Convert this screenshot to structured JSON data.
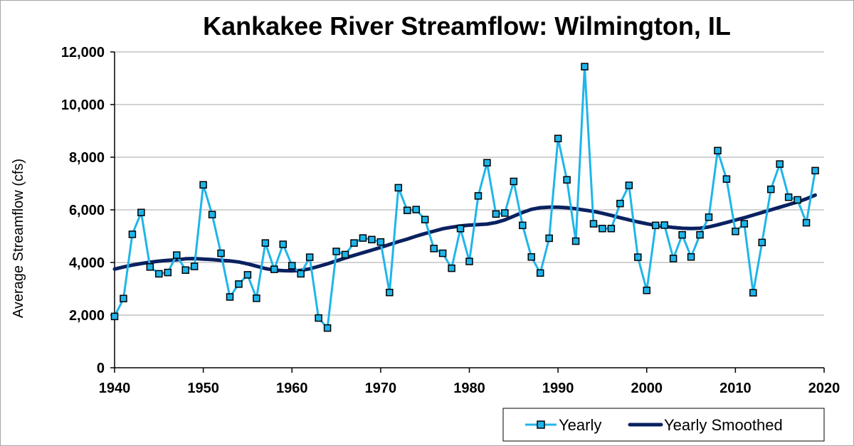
{
  "chart_data": {
    "type": "line",
    "title": "Kankakee River Streamflow: Wilmington, IL",
    "xlabel": "",
    "ylabel": "Average Streamflow (cfs)",
    "xlim": [
      1940,
      2020
    ],
    "ylim": [
      0,
      12000
    ],
    "x_ticks": [
      1940,
      1950,
      1960,
      1970,
      1980,
      1990,
      2000,
      2010,
      2020
    ],
    "x_tick_labels": [
      "1940",
      "1950",
      "1960",
      "1970",
      "1980",
      "1990",
      "2000",
      "2010",
      "2020"
    ],
    "y_ticks": [
      0,
      2000,
      4000,
      6000,
      8000,
      10000,
      12000
    ],
    "y_tick_labels": [
      "0",
      "2,000",
      "4,000",
      "6,000",
      "8,000",
      "10,000",
      "12,000"
    ],
    "grid": "horizontal",
    "legend_position": "bottom-right",
    "x": [
      1940,
      1941,
      1942,
      1943,
      1944,
      1945,
      1946,
      1947,
      1948,
      1949,
      1950,
      1951,
      1952,
      1953,
      1954,
      1955,
      1956,
      1957,
      1958,
      1959,
      1960,
      1961,
      1962,
      1963,
      1964,
      1965,
      1966,
      1967,
      1968,
      1969,
      1970,
      1971,
      1972,
      1973,
      1974,
      1975,
      1976,
      1977,
      1978,
      1979,
      1980,
      1981,
      1982,
      1983,
      1984,
      1985,
      1986,
      1987,
      1988,
      1989,
      1990,
      1991,
      1992,
      1993,
      1994,
      1995,
      1996,
      1997,
      1998,
      1999,
      2000,
      2001,
      2002,
      2003,
      2004,
      2005,
      2006,
      2007,
      2008,
      2009,
      2010,
      2011,
      2012,
      2013,
      2014,
      2015,
      2016,
      2017,
      2018,
      2019
    ],
    "series": [
      {
        "name": "Yearly",
        "color": "#1fb5ea",
        "marker": "square",
        "values": [
          1950,
          2630,
          5070,
          5900,
          3830,
          3570,
          3620,
          4280,
          3710,
          3850,
          6950,
          5820,
          4350,
          2690,
          3180,
          3530,
          2640,
          4740,
          3740,
          4690,
          3880,
          3570,
          4200,
          1890,
          1510,
          4420,
          4300,
          4740,
          4930,
          4870,
          4780,
          2860,
          6840,
          5980,
          6010,
          5630,
          4530,
          4350,
          3780,
          5290,
          4040,
          6530,
          7790,
          5840,
          5880,
          7080,
          5410,
          4210,
          3600,
          4920,
          8710,
          7140,
          4810,
          11440,
          5470,
          5290,
          5290,
          6240,
          6930,
          4200,
          2940,
          5410,
          5420,
          4150,
          5050,
          4210,
          5050,
          5720,
          8250,
          7170,
          5180,
          5470,
          2850,
          4760,
          6780,
          7740,
          6480,
          6380,
          5510,
          7490
        ]
      },
      {
        "name": "Yearly Smoothed",
        "color": "#0a2160",
        "marker": "none",
        "values": [
          3750,
          3830,
          3900,
          3960,
          4010,
          4050,
          4080,
          4100,
          4140,
          4150,
          4130,
          4110,
          4080,
          4060,
          4020,
          3950,
          3860,
          3770,
          3710,
          3690,
          3680,
          3700,
          3760,
          3850,
          3950,
          4060,
          4170,
          4270,
          4370,
          4470,
          4570,
          4680,
          4790,
          4890,
          5000,
          5100,
          5190,
          5280,
          5340,
          5390,
          5420,
          5440,
          5460,
          5520,
          5620,
          5760,
          5900,
          6020,
          6080,
          6100,
          6100,
          6080,
          6040,
          5990,
          5940,
          5870,
          5790,
          5700,
          5620,
          5540,
          5470,
          5410,
          5370,
          5330,
          5300,
          5290,
          5300,
          5350,
          5430,
          5520,
          5610,
          5700,
          5800,
          5900,
          6000,
          6100,
          6200,
          6300,
          6420,
          6560
        ]
      }
    ]
  }
}
